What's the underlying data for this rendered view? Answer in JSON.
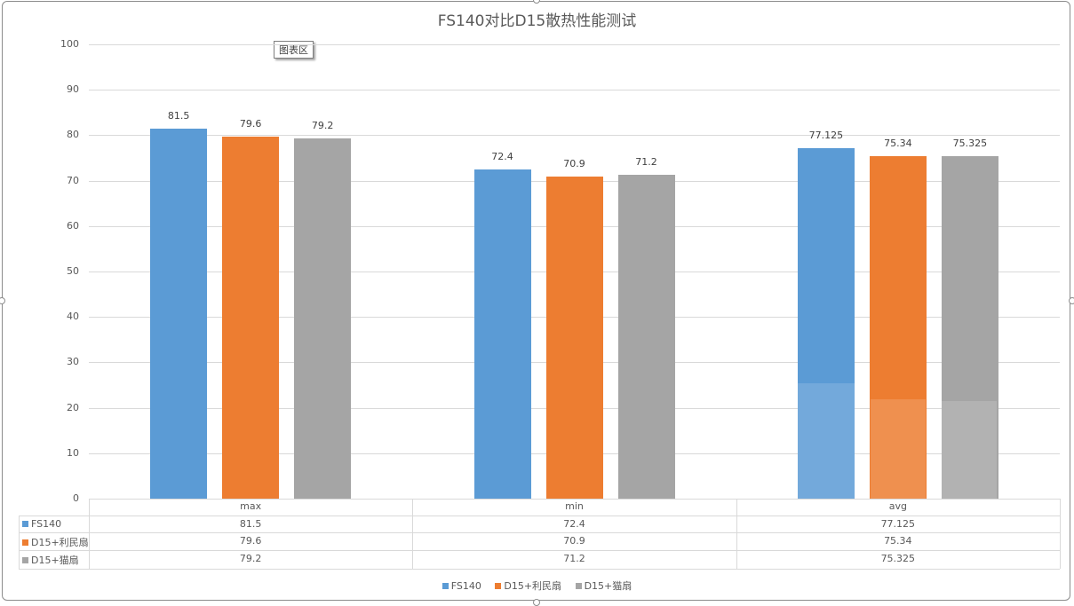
{
  "chart_data": {
    "type": "bar",
    "title": "FS140对比D15散热性能测试",
    "categories": [
      "max",
      "min",
      "avg"
    ],
    "series": [
      {
        "name": "FS140",
        "color": "#5b9bd5",
        "values": [
          81.5,
          72.4,
          77.125
        ]
      },
      {
        "name": "D15+利民扇",
        "color": "#ed7d31",
        "values": [
          79.6,
          70.9,
          75.34
        ]
      },
      {
        "name": "D15+猫扇",
        "color": "#a5a5a5",
        "values": [
          79.2,
          71.2,
          75.325
        ]
      }
    ],
    "xlabel": "",
    "ylabel": "",
    "ylim": [
      0,
      100
    ],
    "yticks": [
      "0",
      "10",
      "20",
      "30",
      "40",
      "50",
      "60",
      "70",
      "80",
      "90",
      "100"
    ],
    "grid": true,
    "data_labels": true,
    "data_table": true,
    "legend_position": "bottom"
  },
  "tooltip": "图表区",
  "table": {
    "headers": [
      "max",
      "min",
      "avg"
    ],
    "rows": [
      {
        "label": "FS140",
        "values": [
          "81.5",
          "72.4",
          "77.125"
        ]
      },
      {
        "label": "D15+利民扇",
        "values": [
          "79.6",
          "70.9",
          "75.34"
        ]
      },
      {
        "label": "D15+猫扇",
        "values": [
          "79.2",
          "71.2",
          "75.325"
        ]
      }
    ]
  },
  "labels": {
    "s0": [
      "81.5",
      "72.4",
      "77.125"
    ],
    "s1": [
      "79.6",
      "70.9",
      "75.34"
    ],
    "s2": [
      "79.2",
      "71.2",
      "75.325"
    ]
  },
  "legend": [
    "FS140",
    "D15+利民扇",
    "D15+猫扇"
  ]
}
